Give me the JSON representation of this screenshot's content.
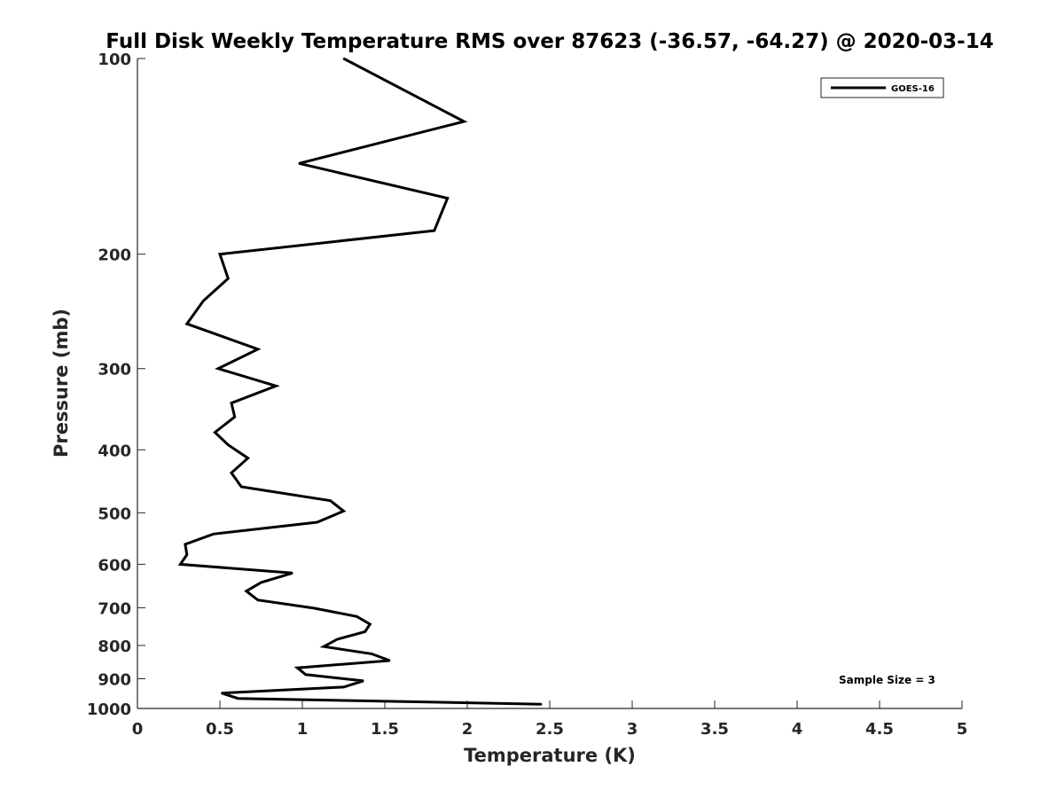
{
  "chart_data": {
    "type": "line",
    "title": "Full Disk Weekly Temperature RMS over 87623 (-36.57, -64.27) @ 2020-03-14",
    "xlabel": "Temperature (K)",
    "ylabel": "Pressure (mb)",
    "xlim": [
      0,
      5
    ],
    "ylim": [
      100,
      1000
    ],
    "y_scale": "log",
    "y_reversed": true,
    "x_ticks": [
      "0",
      "0.5",
      "1",
      "1.5",
      "2",
      "2.5",
      "3",
      "3.5",
      "4",
      "4.5",
      "5"
    ],
    "y_ticks": [
      "100",
      "200",
      "300",
      "400",
      "500",
      "600",
      "700",
      "800",
      "900",
      "1000"
    ],
    "grid": false,
    "legend_position": "top-right",
    "annotation": "Sample Size = 3",
    "series": [
      {
        "name": "GOES-16",
        "color": "#000000",
        "points": [
          [
            1.25,
            100
          ],
          [
            1.98,
            125
          ],
          [
            0.98,
            145
          ],
          [
            1.88,
            164
          ],
          [
            1.8,
            184
          ],
          [
            0.5,
            200
          ],
          [
            0.55,
            218
          ],
          [
            0.4,
            236
          ],
          [
            0.3,
            256
          ],
          [
            0.73,
            280
          ],
          [
            0.49,
            300
          ],
          [
            0.84,
            319
          ],
          [
            0.57,
            339
          ],
          [
            0.59,
            356
          ],
          [
            0.47,
            376
          ],
          [
            0.55,
            393
          ],
          [
            0.67,
            412
          ],
          [
            0.57,
            434
          ],
          [
            0.63,
            456
          ],
          [
            1.17,
            479
          ],
          [
            1.25,
            497
          ],
          [
            1.09,
            517
          ],
          [
            0.46,
            539
          ],
          [
            0.29,
            559
          ],
          [
            0.3,
            580
          ],
          [
            0.26,
            600
          ],
          [
            0.94,
            619
          ],
          [
            0.75,
            640
          ],
          [
            0.66,
            660
          ],
          [
            0.73,
            681
          ],
          [
            1.07,
            701
          ],
          [
            1.33,
            722
          ],
          [
            1.41,
            742
          ],
          [
            1.38,
            762
          ],
          [
            1.21,
            783
          ],
          [
            1.13,
            803
          ],
          [
            1.42,
            824
          ],
          [
            1.53,
            844
          ],
          [
            0.97,
            866
          ],
          [
            1.02,
            887
          ],
          [
            1.37,
            907
          ],
          [
            1.25,
            927
          ],
          [
            0.51,
            947
          ],
          [
            0.61,
            965
          ],
          [
            2.45,
            985
          ]
        ]
      }
    ]
  }
}
